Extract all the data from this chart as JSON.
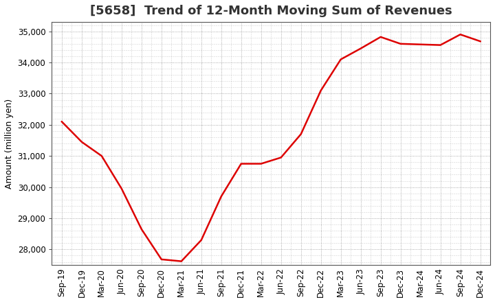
{
  "title": "[5658]  Trend of 12-Month Moving Sum of Revenues",
  "ylabel": "Amount (million yen)",
  "line_color": "#dd0000",
  "background_color": "#ffffff",
  "plot_bg_color": "#ffffff",
  "grid_color": "#888888",
  "x_labels": [
    "Sep-19",
    "Dec-19",
    "Mar-20",
    "Jun-20",
    "Sep-20",
    "Dec-20",
    "Mar-21",
    "Jun-21",
    "Sep-21",
    "Dec-21",
    "Mar-22",
    "Jun-22",
    "Sep-22",
    "Dec-22",
    "Mar-23",
    "Jun-23",
    "Sep-23",
    "Dec-23",
    "Mar-24",
    "Jun-24",
    "Sep-24",
    "Dec-24"
  ],
  "y_values": [
    32100,
    31450,
    31000,
    29950,
    28650,
    27680,
    27620,
    28300,
    29700,
    30750,
    30750,
    30950,
    31700,
    33100,
    34100,
    34450,
    34820,
    34600,
    34580,
    34560,
    34900,
    34680
  ],
  "ylim": [
    27500,
    35300
  ],
  "yticks": [
    28000,
    29000,
    30000,
    31000,
    32000,
    33000,
    34000,
    35000
  ],
  "title_fontsize": 13,
  "label_fontsize": 9,
  "tick_fontsize": 8.5
}
